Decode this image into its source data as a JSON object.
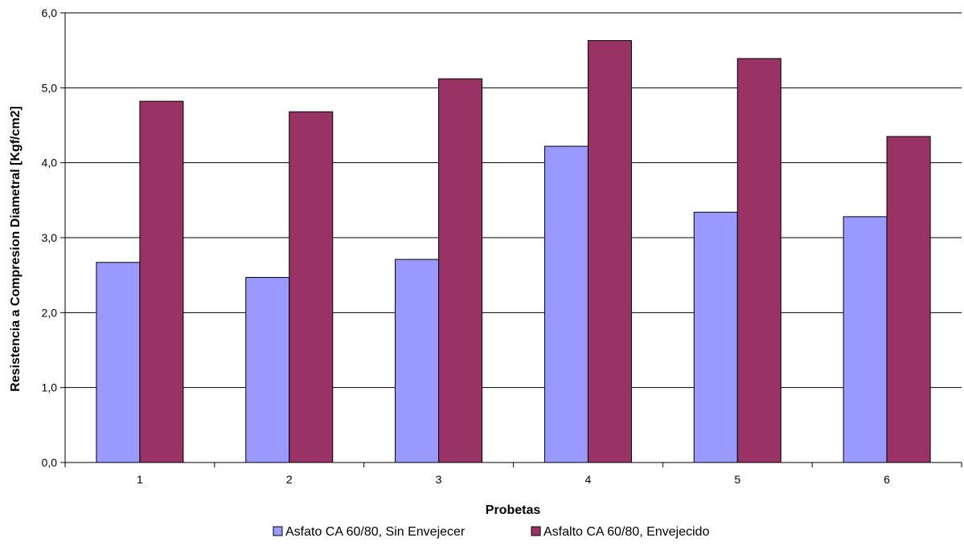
{
  "chart_data": {
    "type": "bar",
    "title": "",
    "xlabel": "Probetas",
    "ylabel": "Resistencia a Compresion Diametral [Kgf/cm2]",
    "categories": [
      "1",
      "2",
      "3",
      "4",
      "5",
      "6"
    ],
    "ylim": [
      0,
      6
    ],
    "yticks": [
      "0,0",
      "1,0",
      "2,0",
      "3,0",
      "4,0",
      "5,0",
      "6,0"
    ],
    "grid": true,
    "legend_position": "bottom",
    "series": [
      {
        "name": "Asfato CA 60/80, Sin Envejecer",
        "color": "#9999ff",
        "values": [
          2.67,
          2.47,
          2.71,
          4.22,
          3.34,
          3.28
        ]
      },
      {
        "name": "Asfalto CA 60/80, Envejecido",
        "color": "#993366",
        "values": [
          4.82,
          4.68,
          5.12,
          5.63,
          5.39,
          4.35
        ]
      }
    ]
  }
}
